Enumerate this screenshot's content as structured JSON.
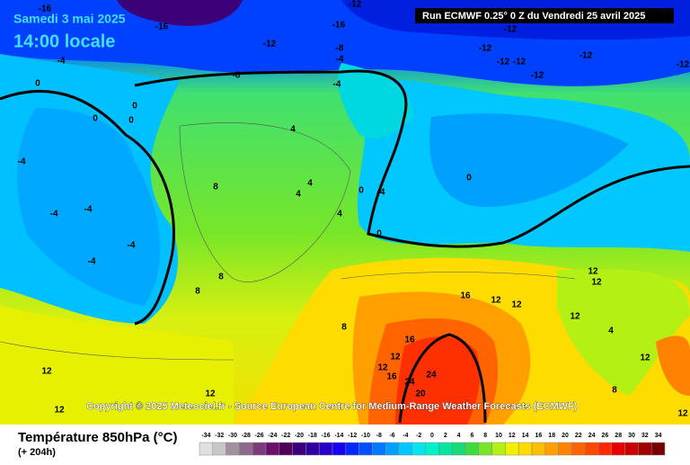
{
  "header": {
    "date": "Samedi 3 mai 2025",
    "time": "14:00 locale",
    "run": "Run ECMWF 0.25° 0 Z du Vendredi 25 avril 2025"
  },
  "copyright": "Copyright © 2025 Meteociel.fr - Source European Centre for Medium-Range Weather Forecasts (ECMWF)",
  "footer": {
    "title": "Température 850hPa (°C)",
    "lead": "(+ 204h)"
  },
  "scale": {
    "labels": [
      -34,
      -32,
      -30,
      -28,
      -26,
      -24,
      -22,
      -20,
      -18,
      -16,
      -14,
      -12,
      -10,
      -8,
      -6,
      -4,
      -2,
      0,
      2,
      4,
      6,
      8,
      10,
      12,
      14,
      16,
      18,
      20,
      22,
      24,
      26,
      28,
      30,
      32,
      34
    ],
    "colors": [
      "#e0e0e0",
      "#c8c8c8",
      "#a090a0",
      "#8c6a8c",
      "#7a3c7a",
      "#6a0f6a",
      "#50005a",
      "#3c0078",
      "#3000a0",
      "#2400c8",
      "#1800f0",
      "#0028ff",
      "#0050ff",
      "#0078ff",
      "#00a0ff",
      "#00c8ff",
      "#00e6f0",
      "#00f0c8",
      "#00e6a0",
      "#14dc78",
      "#3cdc3c",
      "#78e628",
      "#b4f014",
      "#f0f000",
      "#ffdc00",
      "#ffbe00",
      "#ffa000",
      "#ff8200",
      "#ff6400",
      "#ff4600",
      "#ff2800",
      "#e60000",
      "#c80000",
      "#a00000",
      "#780000"
    ]
  },
  "contour_labels": [
    "-16",
    "-16",
    "-12",
    "-16",
    "-12",
    "-8",
    "-4",
    "-12",
    "-12",
    "-12",
    "-12",
    "-12",
    "-12",
    "-12",
    "-4",
    "-8",
    "0",
    "-4",
    "0",
    "0",
    "0",
    "4",
    "-4",
    "8",
    "4",
    "4",
    "0",
    "-4",
    "0",
    "-4",
    "-4",
    "4",
    "-4",
    "-4",
    "0",
    "8",
    "8",
    "16",
    "12",
    "12",
    "12",
    "12",
    "8",
    "16",
    "12",
    "12",
    "4",
    "12",
    "12",
    "16",
    "24",
    "24",
    "20",
    "12",
    "12",
    "8",
    "12",
    "12"
  ]
}
